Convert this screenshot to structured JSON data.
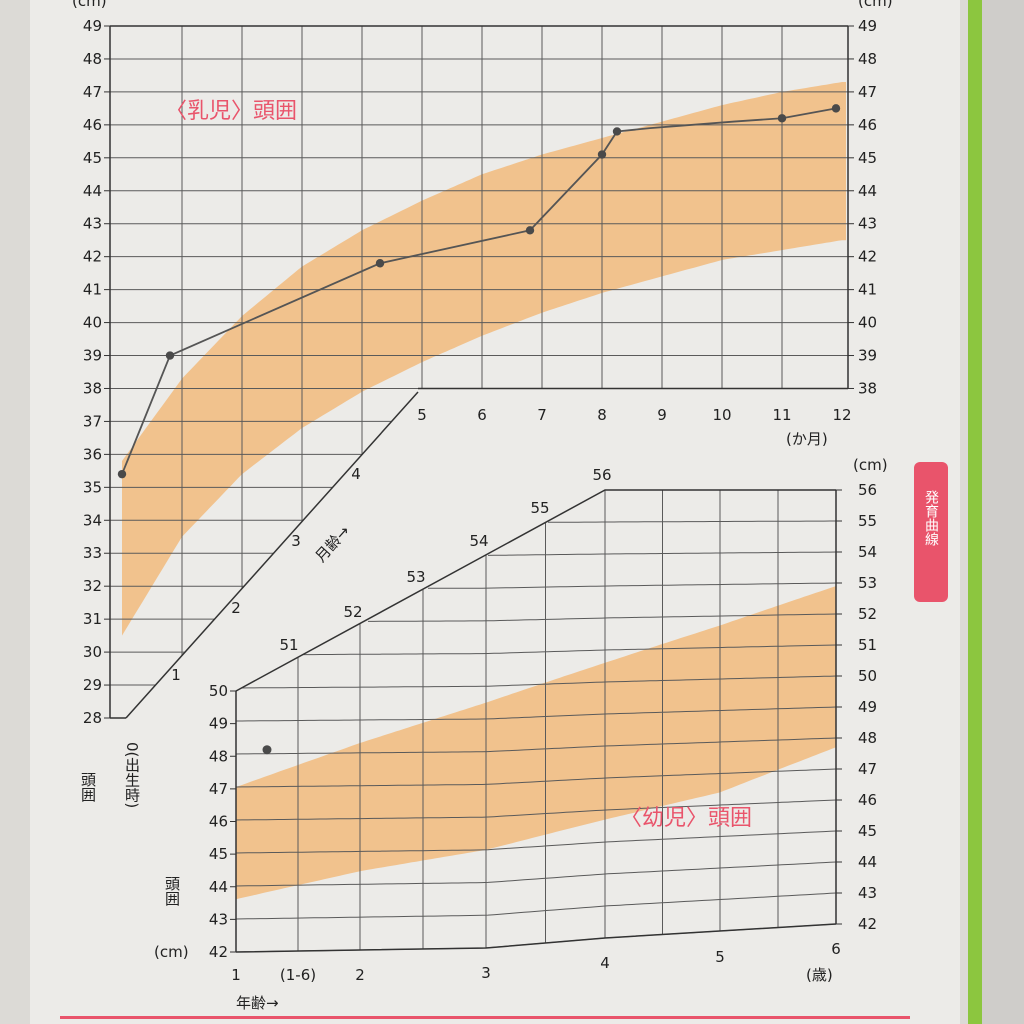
{
  "chart_data": [
    {
      "type": "line",
      "title": "〈乳児〉頭囲",
      "ylabel": "頭囲",
      "y_unit_left": "(cm)",
      "y_unit_right": "(cm)",
      "xlabel": "月齢→",
      "x_unit": "(か月)",
      "x_zero_label": "0(出生時)",
      "ylim": [
        28,
        49
      ],
      "right_ylim": [
        38,
        49
      ],
      "xlim": [
        0,
        12
      ],
      "x_ticks": [
        0,
        1,
        2,
        3,
        4,
        5,
        6,
        7,
        8,
        9,
        10,
        11,
        12
      ],
      "grid": true,
      "band": {
        "description": "",
        "x": [
          0,
          1,
          2,
          3,
          4,
          5,
          6,
          7,
          8,
          9,
          10,
          11,
          12
        ],
        "lower": [
          30.5,
          33.5,
          35.4,
          36.8,
          37.9,
          38.8,
          39.6,
          40.3,
          40.9,
          41.4,
          41.9,
          42.2,
          42.5
        ],
        "upper": [
          35.8,
          38.3,
          40.2,
          41.7,
          42.8,
          43.7,
          44.5,
          45.1,
          45.6,
          46.1,
          46.6,
          47.0,
          47.3
        ]
      },
      "series": [
        {
          "name": "",
          "x": [
            0,
            0.8,
            1.8,
            4.3,
            6.8,
            8.0,
            8.25,
            8.8,
            10.2,
            11.0,
            11.9
          ],
          "y": [
            35.4,
            39.0,
            39.8,
            41.8,
            42.8,
            45.1,
            45.8,
            45.9,
            46.1,
            46.2,
            46.5
          ]
        }
      ]
    },
    {
      "type": "line",
      "title": "〈幼児〉頭囲",
      "ylabel": "頭囲",
      "y_unit_left": "(cm)",
      "y_unit_right": "(cm)",
      "xlabel": "年齢→",
      "x_unit": "(歳)",
      "ylim": [
        42,
        50
      ],
      "right_ylim": [
        42,
        56
      ],
      "xlim": [
        1,
        6
      ],
      "x_ticks": [
        "1",
        "(1-6)",
        "2",
        "3",
        "4",
        "5",
        "6"
      ],
      "top_scale_labels": [
        "51",
        "52",
        "53",
        "54",
        "55",
        "56"
      ],
      "grid": true,
      "band": {
        "description": "",
        "x": [
          1,
          2,
          3,
          4,
          5,
          6
        ],
        "lower": [
          43.6,
          44.4,
          45.0,
          45.7,
          46.4,
          47.7
        ],
        "upper": [
          47.0,
          48.3,
          49.5,
          50.6,
          51.7,
          52.9
        ]
      },
      "series": [
        {
          "name": "",
          "x": [
            1.25
          ],
          "y": [
            48.2
          ]
        }
      ]
    }
  ],
  "side_tab": {
    "label": "発育曲線",
    "color": "#e9546b"
  },
  "colors": {
    "band": "#f1c28d",
    "grid": "#5a5a5a",
    "line": "#555555",
    "accent": "#e9546b"
  }
}
